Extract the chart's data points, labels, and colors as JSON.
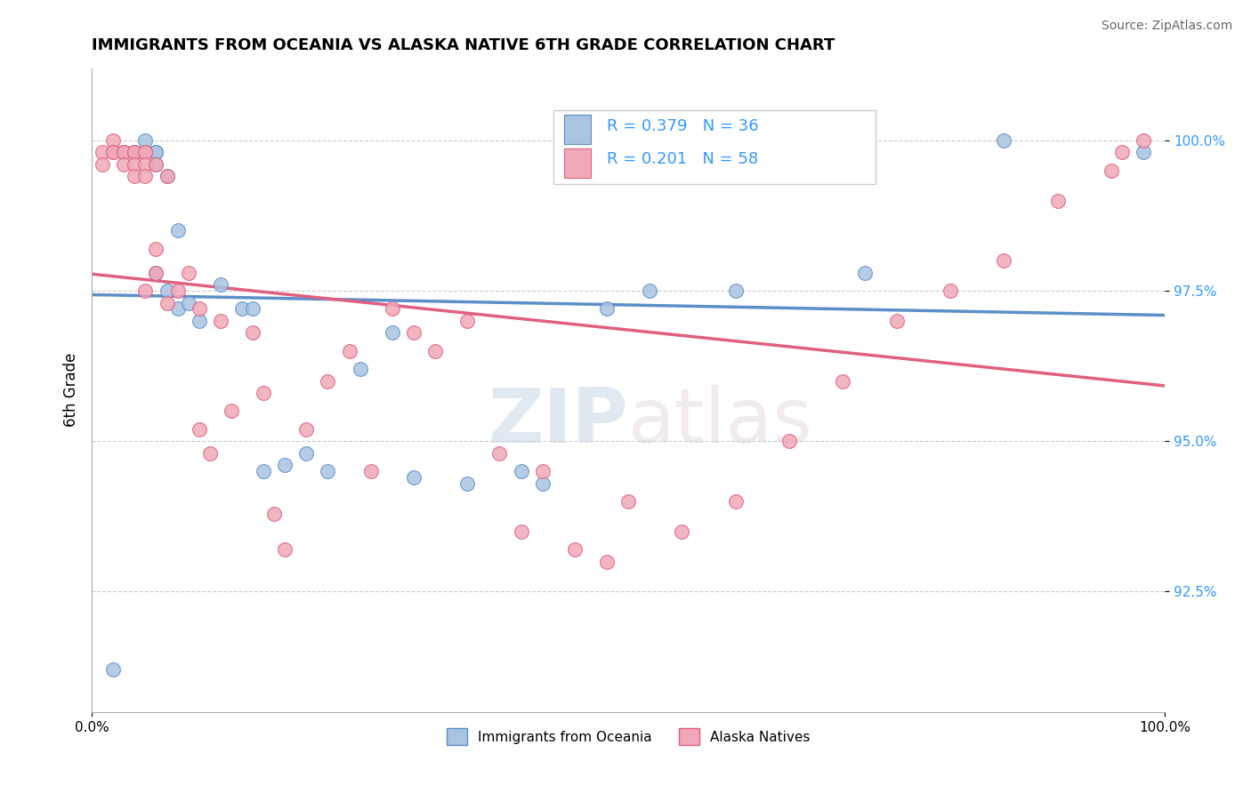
{
  "title": "IMMIGRANTS FROM OCEANIA VS ALASKA NATIVE 6TH GRADE CORRELATION CHART",
  "source": "Source: ZipAtlas.com",
  "ylabel": "6th Grade",
  "xlim": [
    0.0,
    1.0
  ],
  "ylim": [
    90.5,
    101.2
  ],
  "R_blue": 0.379,
  "N_blue": 36,
  "R_pink": 0.201,
  "N_pink": 58,
  "legend_labels": [
    "Immigrants from Oceania",
    "Alaska Natives"
  ],
  "blue_color": "#a8c4e0",
  "pink_color": "#f0a8b8",
  "trendline_blue": "#5b8fc9",
  "trendline_pink": "#e06080",
  "title_fontsize": 13,
  "source_fontsize": 10,
  "blue_scatter_x": [
    0.02,
    0.03,
    0.04,
    0.04,
    0.05,
    0.05,
    0.05,
    0.06,
    0.06,
    0.06,
    0.06,
    0.07,
    0.07,
    0.08,
    0.08,
    0.09,
    0.1,
    0.12,
    0.14,
    0.15,
    0.16,
    0.18,
    0.2,
    0.22,
    0.25,
    0.28,
    0.3,
    0.35,
    0.4,
    0.42,
    0.48,
    0.52,
    0.6,
    0.72,
    0.85,
    0.98
  ],
  "blue_scatter_y": [
    91.2,
    99.8,
    99.8,
    99.8,
    99.8,
    99.8,
    100.0,
    99.8,
    99.8,
    99.6,
    97.8,
    99.4,
    97.5,
    98.5,
    97.2,
    97.3,
    97.0,
    97.6,
    97.2,
    97.2,
    94.5,
    94.6,
    94.8,
    94.5,
    96.2,
    96.8,
    94.4,
    94.3,
    94.5,
    94.3,
    97.2,
    97.5,
    97.5,
    97.8,
    100.0,
    99.8
  ],
  "pink_scatter_x": [
    0.01,
    0.01,
    0.02,
    0.02,
    0.02,
    0.03,
    0.03,
    0.03,
    0.04,
    0.04,
    0.04,
    0.04,
    0.05,
    0.05,
    0.05,
    0.05,
    0.05,
    0.06,
    0.06,
    0.06,
    0.07,
    0.07,
    0.08,
    0.09,
    0.1,
    0.1,
    0.11,
    0.12,
    0.13,
    0.15,
    0.16,
    0.17,
    0.18,
    0.2,
    0.22,
    0.24,
    0.26,
    0.28,
    0.3,
    0.32,
    0.35,
    0.38,
    0.4,
    0.42,
    0.45,
    0.48,
    0.5,
    0.55,
    0.6,
    0.65,
    0.7,
    0.75,
    0.8,
    0.85,
    0.9,
    0.95,
    0.96,
    0.98
  ],
  "pink_scatter_y": [
    99.8,
    99.6,
    100.0,
    99.8,
    99.8,
    99.8,
    99.8,
    99.6,
    99.8,
    99.8,
    99.6,
    99.4,
    99.8,
    99.8,
    99.6,
    99.4,
    97.5,
    99.6,
    98.2,
    97.8,
    99.4,
    97.3,
    97.5,
    97.8,
    97.2,
    95.2,
    94.8,
    97.0,
    95.5,
    96.8,
    95.8,
    93.8,
    93.2,
    95.2,
    96.0,
    96.5,
    94.5,
    97.2,
    96.8,
    96.5,
    97.0,
    94.8,
    93.5,
    94.5,
    93.2,
    93.0,
    94.0,
    93.5,
    94.0,
    95.0,
    96.0,
    97.0,
    97.5,
    98.0,
    99.0,
    99.5,
    99.8,
    100.0
  ],
  "watermark_zip": "ZIP",
  "watermark_atlas": "atlas",
  "background_color": "#ffffff",
  "grid_color": "#cccccc",
  "tick_color": "#3399ff"
}
